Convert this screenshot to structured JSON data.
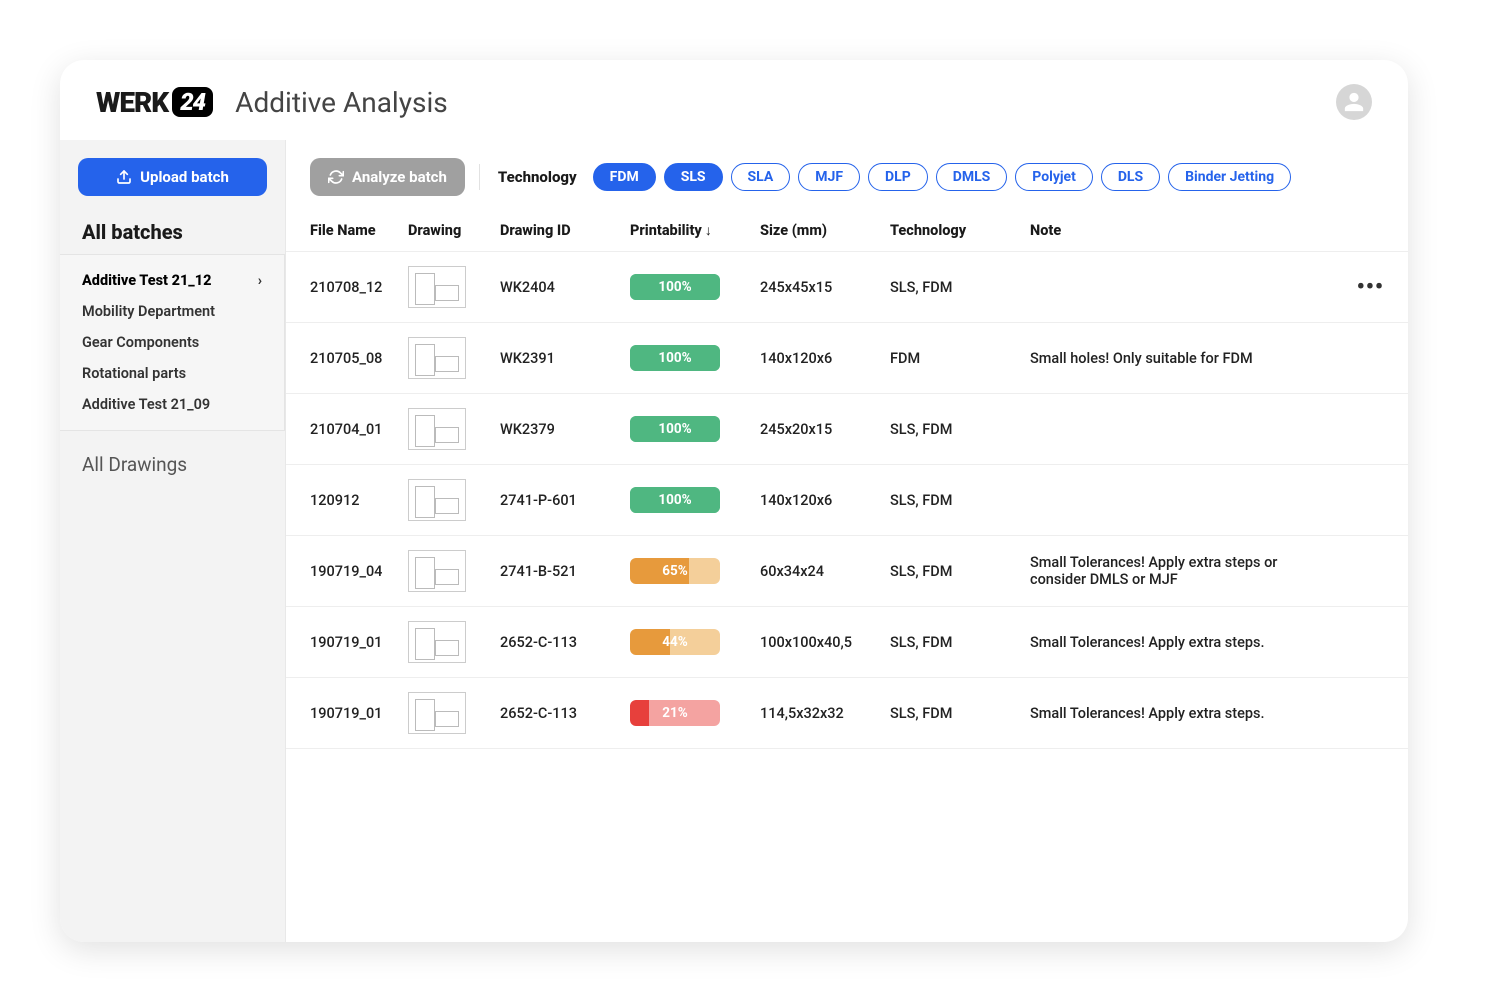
{
  "header": {
    "logo_text": "WERK",
    "logo_badge": "24",
    "page_title": "Additive Analysis"
  },
  "sidebar": {
    "upload_label": "Upload batch",
    "section_title": "All batches",
    "batches": [
      {
        "label": "Additive Test 21_12",
        "active": true
      },
      {
        "label": "Mobility Department",
        "active": false
      },
      {
        "label": "Gear Components",
        "active": false
      },
      {
        "label": "Rotational parts",
        "active": false
      },
      {
        "label": "Additive Test 21_09",
        "active": false
      }
    ],
    "all_drawings_label": "All Drawings"
  },
  "toolbar": {
    "analyze_label": "Analyze batch",
    "technology_label": "Technology",
    "chips": [
      {
        "label": "FDM",
        "selected": true
      },
      {
        "label": "SLS",
        "selected": true
      },
      {
        "label": "SLA",
        "selected": false
      },
      {
        "label": "MJF",
        "selected": false
      },
      {
        "label": "DLP",
        "selected": false
      },
      {
        "label": "DMLS",
        "selected": false
      },
      {
        "label": "Polyjet",
        "selected": false
      },
      {
        "label": "DLS",
        "selected": false
      },
      {
        "label": "Binder Jetting",
        "selected": false
      }
    ]
  },
  "table": {
    "columns": {
      "file_name": "File Name",
      "drawing": "Drawing",
      "drawing_id": "Drawing ID",
      "printability": "Printability",
      "size": "Size (mm)",
      "technology": "Technology",
      "note": "Note"
    },
    "sort": {
      "column": "printability",
      "dir": "desc",
      "arrow": "↓"
    },
    "printability_colors": {
      "green": {
        "fill": "#4fb781",
        "track": "#4fb781"
      },
      "orange": {
        "fill": "#e79a3c",
        "track": "#f4cf9a"
      },
      "red": {
        "fill": "#e7403c",
        "track": "#f4a3a1"
      }
    },
    "rows": [
      {
        "file": "210708_12",
        "id": "WK2404",
        "pct": 100,
        "color": "green",
        "size": "245x45x15",
        "tech": "SLS, FDM",
        "note": "",
        "more": true
      },
      {
        "file": "210705_08",
        "id": "WK2391",
        "pct": 100,
        "color": "green",
        "size": "140x120x6",
        "tech": "FDM",
        "note": "Small holes! Only suitable for FDM",
        "more": false
      },
      {
        "file": "210704_01",
        "id": "WK2379",
        "pct": 100,
        "color": "green",
        "size": "245x20x15",
        "tech": "SLS, FDM",
        "note": "",
        "more": false
      },
      {
        "file": "120912",
        "id": "2741-P-601",
        "pct": 100,
        "color": "green",
        "size": "140x120x6",
        "tech": "SLS, FDM",
        "note": "",
        "more": false
      },
      {
        "file": "190719_04",
        "id": "2741-B-521",
        "pct": 65,
        "color": "orange",
        "size": "60x34x24",
        "tech": "SLS, FDM",
        "note": "Small Tolerances! Apply extra steps or consider DMLS or MJF",
        "more": false
      },
      {
        "file": "190719_01",
        "id": "2652-C-113",
        "pct": 44,
        "color": "orange",
        "size": "100x100x40,5",
        "tech": "SLS, FDM",
        "note": "Small Tolerances! Apply extra steps.",
        "more": false
      },
      {
        "file": "190719_01",
        "id": "2652-C-113",
        "pct": 21,
        "color": "red",
        "size": "114,5x32x32",
        "tech": "SLS, FDM",
        "note": "Small Tolerances! Apply extra steps.",
        "more": false
      }
    ]
  }
}
